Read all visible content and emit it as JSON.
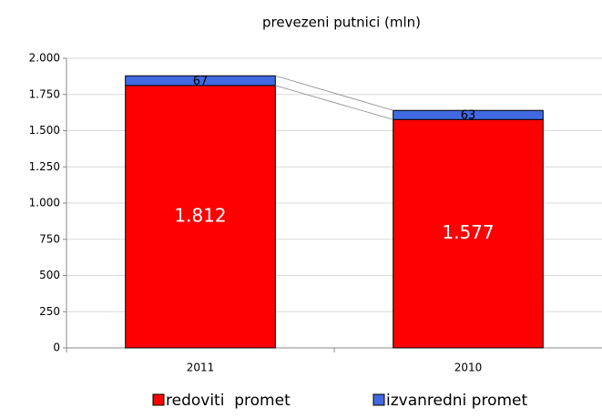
{
  "chart_data": {
    "type": "stacked_bar",
    "title": "prevezeni putnici (mln)",
    "categories": [
      "2011",
      "2010"
    ],
    "series": [
      {
        "name": "redoviti  promet",
        "color": "#ff0000",
        "values": [
          1812,
          1577
        ],
        "value_labels": [
          "1.812",
          "1.577"
        ]
      },
      {
        "name": "izvanredni promet",
        "color": "#4169e1",
        "values": [
          67,
          63
        ]
      }
    ],
    "ylim": [
      0,
      2000
    ],
    "yticks": [
      0,
      250,
      500,
      750,
      {
        "value": 1000,
        "label": "1.000"
      },
      {
        "value": 1250,
        "label": "1.250"
      },
      {
        "value": 1500,
        "label": "1.500"
      },
      {
        "value": 1750,
        "label": "1.750"
      },
      {
        "value": 2000,
        "label": "2.000"
      }
    ],
    "grid": true,
    "legend": "bottom"
  }
}
